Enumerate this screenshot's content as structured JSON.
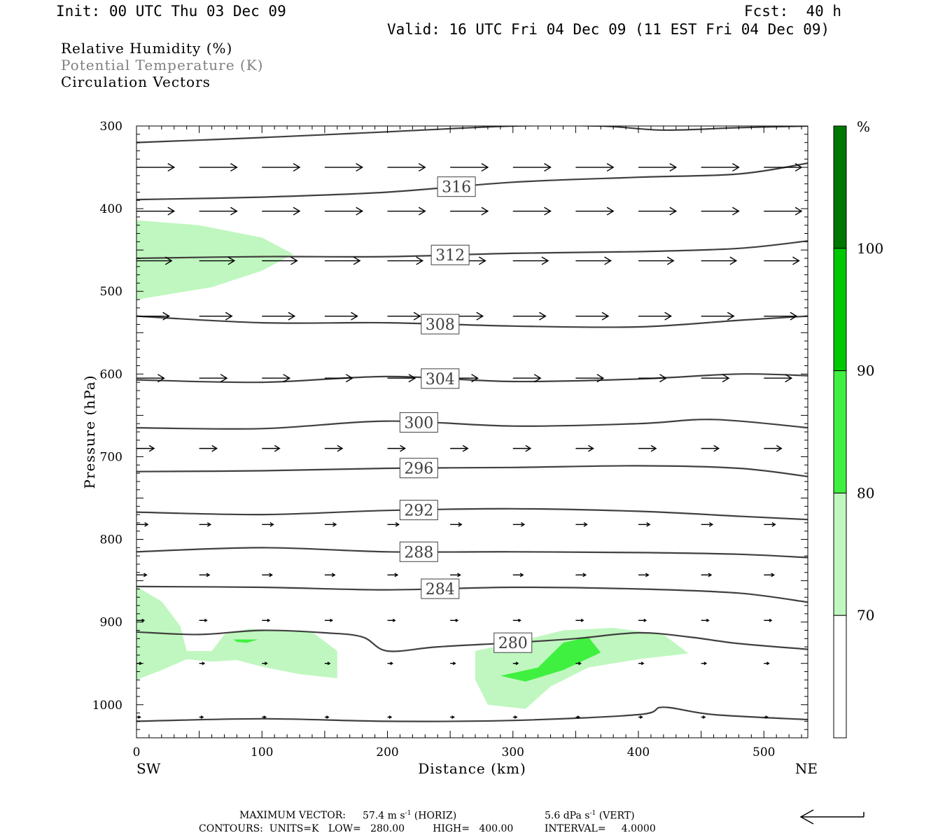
{
  "header": {
    "init": "Init: 00 UTC Thu 03 Dec 09",
    "fcst": "Fcst:  40 h",
    "valid": "Valid: 16 UTC Fri 04 Dec 09 (11 EST Fri 04 Dec 09)"
  },
  "legend_text": {
    "line1": "Relative Humidity (%)",
    "line2": "Potential Temperature (K)",
    "line3": "Circulation Vectors"
  },
  "footer": {
    "max_vector_label": "MAXIMUM VECTOR:",
    "max_vector_horiz": "57.4 m s",
    "horiz_sup": "-1",
    "horiz_tag": "(HORIZ)",
    "max_vector_vert": "5.6 dPa s",
    "vert_sup": "-1",
    "vert_tag": "(VERT)",
    "contours": "CONTOURS:  UNITS=K   LOW=   280.00         HIGH=   400.00          INTERVAL=     4.0000"
  },
  "colors": {
    "rh_70": "#c0f7c0",
    "rh_80": "#40f040",
    "rh_90": "#00c800",
    "rh_100": "#007800",
    "theta_line": "#404040",
    "vector": "#000000"
  },
  "chart_data": {
    "type": "cross-section",
    "xlabel": "Distance (km)",
    "ylabel": "Pressure (hPa)",
    "x_left_end_label": "SW",
    "x_right_end_label": "NE",
    "xlim": [
      0,
      535
    ],
    "ylim": [
      1040,
      300
    ],
    "x_ticks": [
      0,
      100,
      200,
      300,
      400,
      500
    ],
    "y_ticks": [
      300,
      400,
      500,
      600,
      700,
      800,
      900,
      1000
    ],
    "colorbar": {
      "unit": "%",
      "levels": [
        70,
        80,
        90,
        100
      ],
      "colors": [
        "#ffffff",
        "#c0f7c0",
        "#40f040",
        "#00c800",
        "#007800"
      ]
    },
    "theta_contours": [
      {
        "value": 280,
        "label_x": 300,
        "points": [
          [
            0,
            912
          ],
          [
            50,
            915
          ],
          [
            100,
            910
          ],
          [
            150,
            913
          ],
          [
            180,
            918
          ],
          [
            200,
            935
          ],
          [
            240,
            930
          ],
          [
            300,
            925
          ],
          [
            350,
            920
          ],
          [
            400,
            913
          ],
          [
            440,
            918
          ],
          [
            480,
            926
          ],
          [
            535,
            933
          ]
        ]
      },
      {
        "value": 284,
        "label_x": 242,
        "points": [
          [
            0,
            857
          ],
          [
            100,
            858
          ],
          [
            200,
            861
          ],
          [
            300,
            858
          ],
          [
            400,
            860
          ],
          [
            480,
            865
          ],
          [
            535,
            876
          ]
        ]
      },
      {
        "value": 288,
        "label_x": 225,
        "points": [
          [
            0,
            815
          ],
          [
            100,
            810
          ],
          [
            200,
            815
          ],
          [
            300,
            815
          ],
          [
            400,
            816
          ],
          [
            480,
            818
          ],
          [
            535,
            822
          ]
        ]
      },
      {
        "value": 292,
        "label_x": 225,
        "points": [
          [
            0,
            767
          ],
          [
            100,
            770
          ],
          [
            200,
            765
          ],
          [
            300,
            763
          ],
          [
            400,
            766
          ],
          [
            480,
            772
          ],
          [
            535,
            776
          ]
        ]
      },
      {
        "value": 296,
        "label_x": 225,
        "points": [
          [
            0,
            718
          ],
          [
            100,
            717
          ],
          [
            200,
            714
          ],
          [
            300,
            713
          ],
          [
            400,
            711
          ],
          [
            480,
            714
          ],
          [
            535,
            724
          ]
        ]
      },
      {
        "value": 300,
        "label_x": 225,
        "points": [
          [
            0,
            665
          ],
          [
            100,
            666
          ],
          [
            200,
            657
          ],
          [
            300,
            663
          ],
          [
            400,
            660
          ],
          [
            460,
            655
          ],
          [
            535,
            665
          ]
        ]
      },
      {
        "value": 304,
        "label_x": 242,
        "points": [
          [
            0,
            607
          ],
          [
            100,
            610
          ],
          [
            200,
            603
          ],
          [
            300,
            609
          ],
          [
            400,
            606
          ],
          [
            480,
            600
          ],
          [
            535,
            602
          ]
        ]
      },
      {
        "value": 308,
        "label_x": 242,
        "points": [
          [
            0,
            530
          ],
          [
            100,
            538
          ],
          [
            200,
            538
          ],
          [
            300,
            542
          ],
          [
            400,
            543
          ],
          [
            480,
            535
          ],
          [
            535,
            530
          ]
        ]
      },
      {
        "value": 312,
        "label_x": 250,
        "points": [
          [
            0,
            460
          ],
          [
            100,
            458
          ],
          [
            200,
            458
          ],
          [
            300,
            454
          ],
          [
            400,
            452
          ],
          [
            480,
            448
          ],
          [
            535,
            439
          ]
        ]
      },
      {
        "value": 316,
        "label_x": 255,
        "points": [
          [
            0,
            389
          ],
          [
            100,
            386
          ],
          [
            200,
            380
          ],
          [
            300,
            368
          ],
          [
            400,
            362
          ],
          [
            480,
            358
          ],
          [
            535,
            345
          ]
        ]
      },
      {
        "value": 320,
        "label_x": null,
        "points": [
          [
            0,
            320
          ],
          [
            100,
            314
          ],
          [
            200,
            307
          ],
          [
            300,
            300
          ],
          [
            370,
            300
          ],
          [
            420,
            305
          ],
          [
            480,
            302
          ],
          [
            535,
            300
          ]
        ]
      }
    ],
    "surface_line_points": [
      [
        0,
        1020
      ],
      [
        100,
        1017
      ],
      [
        200,
        1020
      ],
      [
        300,
        1019
      ],
      [
        400,
        1012
      ],
      [
        420,
        1003
      ],
      [
        460,
        1012
      ],
      [
        535,
        1018
      ]
    ],
    "rh_regions": [
      {
        "level": 70,
        "polygon": [
          [
            0,
            414
          ],
          [
            50,
            420
          ],
          [
            100,
            435
          ],
          [
            125,
            455
          ],
          [
            100,
            475
          ],
          [
            60,
            495
          ],
          [
            0,
            510
          ]
        ]
      },
      {
        "level": 70,
        "polygon": [
          [
            0,
            857
          ],
          [
            20,
            875
          ],
          [
            35,
            905
          ],
          [
            40,
            935
          ],
          [
            60,
            935
          ],
          [
            70,
            915
          ],
          [
            90,
            908
          ],
          [
            140,
            912
          ],
          [
            160,
            935
          ],
          [
            160,
            968
          ],
          [
            130,
            963
          ],
          [
            100,
            954
          ],
          [
            80,
            946
          ],
          [
            60,
            948
          ],
          [
            40,
            945
          ],
          [
            20,
            958
          ],
          [
            0,
            970
          ]
        ]
      },
      {
        "level": 70,
        "polygon": [
          [
            270,
            935
          ],
          [
            300,
            925
          ],
          [
            340,
            910
          ],
          [
            380,
            907
          ],
          [
            420,
            915
          ],
          [
            440,
            938
          ],
          [
            400,
            945
          ],
          [
            360,
            955
          ],
          [
            330,
            978
          ],
          [
            310,
            1005
          ],
          [
            280,
            1000
          ],
          [
            270,
            970
          ]
        ]
      },
      {
        "level": 80,
        "polygon": [
          [
            290,
            965
          ],
          [
            320,
            955
          ],
          [
            340,
            925
          ],
          [
            360,
            918
          ],
          [
            370,
            937
          ],
          [
            340,
            958
          ],
          [
            310,
            972
          ]
        ]
      },
      {
        "level": 80,
        "polygon": [
          [
            77,
            921
          ],
          [
            90,
            921
          ],
          [
            97,
            921
          ],
          [
            88,
            925
          ],
          [
            80,
            924
          ]
        ]
      }
    ],
    "vector_rows": [
      {
        "pressure": 350,
        "length_km": 30
      },
      {
        "pressure": 403,
        "length_km": 30
      },
      {
        "pressure": 463,
        "length_km": 28
      },
      {
        "pressure": 530,
        "length_km": 26
      },
      {
        "pressure": 605,
        "length_km": 22
      },
      {
        "pressure": 690,
        "length_km": 14
      },
      {
        "pressure": 782,
        "length_km": 9
      },
      {
        "pressure": 843,
        "length_km": 8
      },
      {
        "pressure": 898,
        "length_km": 6
      },
      {
        "pressure": 950,
        "length_km": 4
      },
      {
        "pressure": 1015,
        "length_km": 3
      }
    ],
    "vector_x_positions": [
      0,
      50,
      100,
      150,
      200,
      250,
      300,
      350,
      400,
      450,
      500
    ]
  }
}
